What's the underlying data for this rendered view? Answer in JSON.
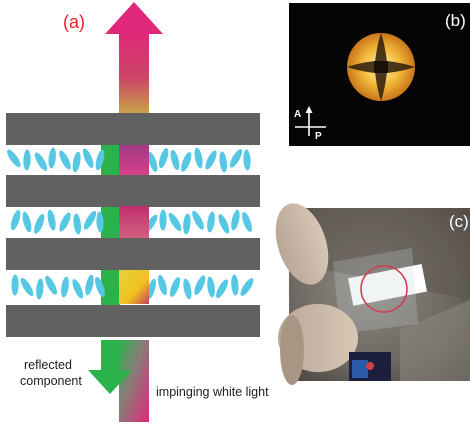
{
  "figure": {
    "panel_a": {
      "label": "(a)",
      "reflected_label": [
        "reflected",
        "component"
      ],
      "impinging_label": "impinging white light"
    },
    "panel_b": {
      "label": "(b)",
      "analyzer_label": "A",
      "polarizer_label": "P"
    },
    "panel_c": {
      "label": "(c)"
    }
  },
  "colors": {
    "layer": "#616161",
    "molecule": "#56c8e4",
    "arrow_top": "#e0287a",
    "arrow_bottom": "#2bb24a",
    "label_red": "#e8202a",
    "ring": "#d23b4f"
  }
}
